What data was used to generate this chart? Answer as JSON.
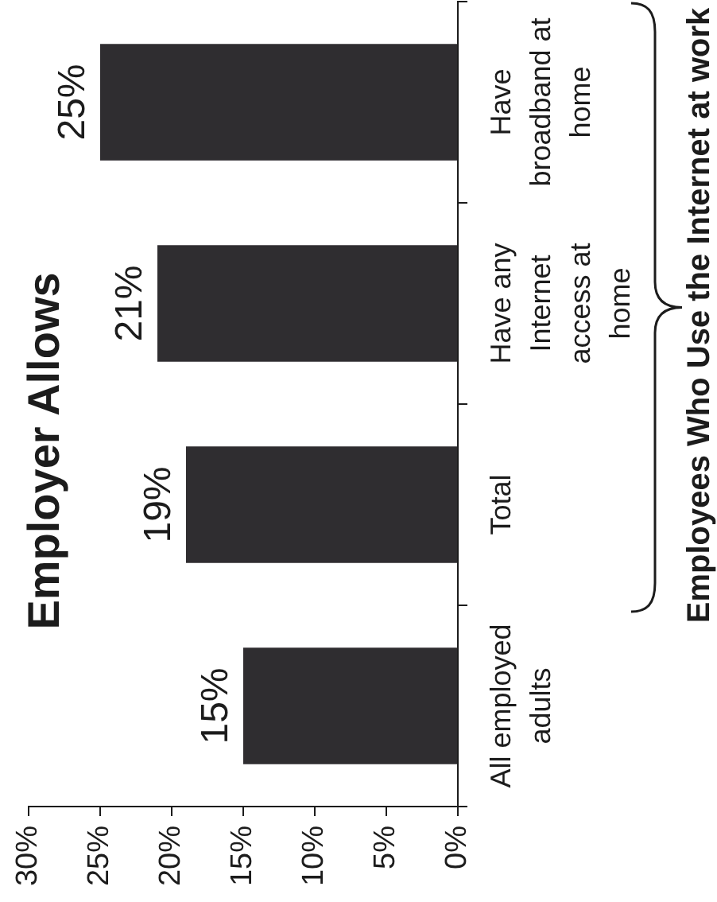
{
  "chart_data": {
    "type": "bar",
    "title": "Employer Allows",
    "orientation": "horizontal",
    "categories": [
      "Have broadband at home",
      "Have any Internet access at home",
      "Total",
      "All employed adults"
    ],
    "values": [
      25,
      21,
      19,
      15
    ],
    "value_labels": [
      "25%",
      "21%",
      "19%",
      "15%"
    ],
    "color": "#2f2d30",
    "xlim": [
      30,
      0
    ],
    "xticks": [
      {
        "value": 0,
        "label": "0%"
      },
      {
        "value": 5,
        "label": "5%"
      },
      {
        "value": 10,
        "label": "10%"
      },
      {
        "value": 15,
        "label": "15%"
      },
      {
        "value": 20,
        "label": "20%"
      },
      {
        "value": 25,
        "label": "25%"
      },
      {
        "value": 30,
        "label": "30%"
      }
    ],
    "annotations": [
      "Employees Who Use the Internet at work"
    ]
  }
}
